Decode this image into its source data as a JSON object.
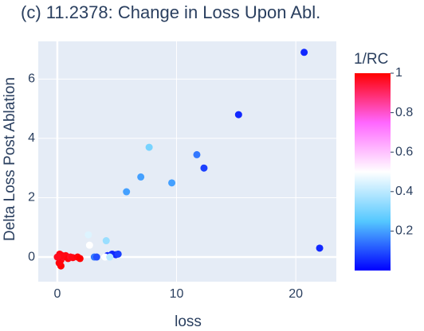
{
  "chart_data": {
    "type": "scatter",
    "title": "(c) 11.2378: Change in Loss Upon Abl.",
    "x_label": "loss",
    "y_label": "Delta Loss Post Ablation",
    "xlim": [
      -1.6,
      23.4
    ],
    "xticks": [
      0,
      10,
      20
    ],
    "ylim": [
      -0.83,
      7.27
    ],
    "yticks": [
      0,
      2,
      4,
      6
    ],
    "grid": true,
    "colorbar_title": "1/RC",
    "clim": [
      0,
      1
    ],
    "cticks": [
      0.2,
      0.4,
      0.6,
      0.8,
      1
    ],
    "colorscale": [
      [
        0,
        "#0000ff"
      ],
      [
        0.25,
        "#55c8ff"
      ],
      [
        0.5,
        "#ffffff"
      ],
      [
        0.75,
        "#ff66ff"
      ],
      [
        1,
        "#ff0000"
      ]
    ],
    "series": [
      {
        "x": [
          20.7,
          15.2,
          7.7,
          11.7,
          12.3,
          7.0,
          9.6,
          5.8,
          22.0,
          2.6,
          4.1,
          2.7,
          3.1,
          3.3,
          4.2,
          4.6,
          4.9,
          5.1,
          4.0,
          4.4,
          0.1,
          0.2,
          0.3,
          0.3,
          0.5,
          0.7,
          0.9,
          1.1,
          1.3,
          1.7,
          1.9,
          0.15,
          0.4,
          0.0
        ],
        "values": [
          6.9,
          4.8,
          3.7,
          3.45,
          3.0,
          2.7,
          2.5,
          2.2,
          0.3,
          0.75,
          0.55,
          0.4,
          0.0,
          0.0,
          0.05,
          0.1,
          0.08,
          0.1,
          0.0,
          0.0,
          0.0,
          0.1,
          -0.1,
          -0.3,
          0.0,
          0.05,
          -0.05,
          0.0,
          -0.02,
          0.0,
          -0.05,
          -0.2,
          0.05,
          0.0
        ],
        "colors": [
          0.05,
          0.05,
          0.3,
          0.15,
          0.08,
          0.2,
          0.2,
          0.2,
          0.05,
          0.45,
          0.35,
          0.5,
          0.15,
          0.1,
          0.05,
          0.05,
          0.05,
          0.08,
          0.5,
          0.4,
          0.97,
          0.98,
          0.99,
          1.0,
          0.97,
          0.98,
          0.99,
          0.97,
          0.98,
          0.99,
          1.0,
          0.99,
          0.98,
          0.97
        ]
      }
    ]
  }
}
